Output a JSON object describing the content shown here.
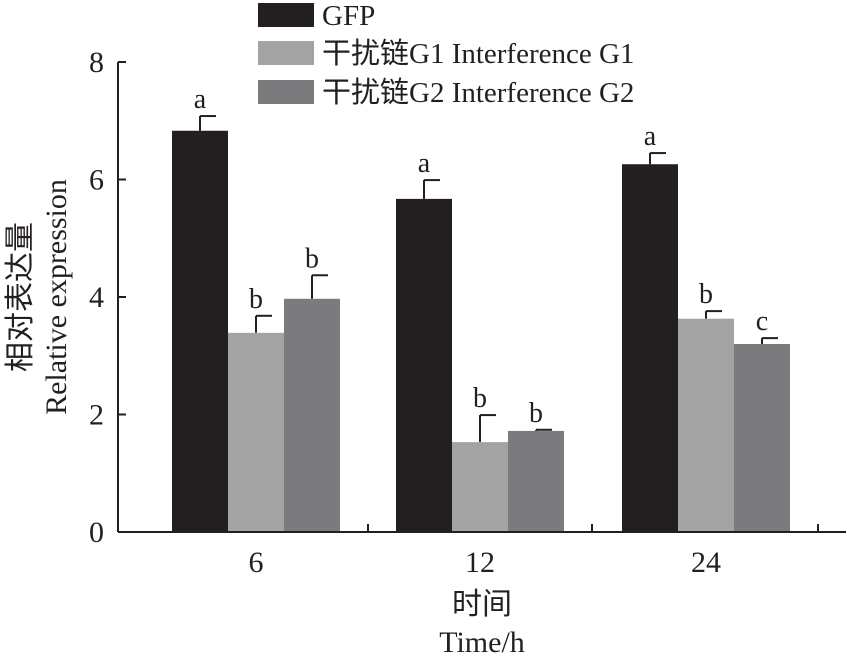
{
  "chart_data": {
    "type": "bar",
    "title": "",
    "xlabel_cn": "时间",
    "xlabel": "Time/h",
    "ylabel_cn": "相对表达量",
    "ylabel": "Relative expression",
    "ylim": [
      0,
      8
    ],
    "yticks": [
      0,
      2,
      4,
      6,
      8
    ],
    "categories": [
      "6",
      "12",
      "24"
    ],
    "legend_position": "top",
    "series": [
      {
        "name": "GFP",
        "color": "#231f20",
        "values": [
          6.83,
          5.67,
          6.26
        ],
        "errors": [
          0.25,
          0.32,
          0.19
        ],
        "labels": [
          "a",
          "a",
          "a"
        ]
      },
      {
        "name": "干扰链G1 Interference G1",
        "color": "#a3a3a3",
        "values": [
          3.39,
          1.53,
          3.63
        ],
        "errors": [
          0.29,
          0.46,
          0.13
        ],
        "labels": [
          "b",
          "b",
          "b"
        ]
      },
      {
        "name": "干扰链G2 Interference G2",
        "color": "#7b7b7d",
        "values": [
          3.97,
          1.72,
          3.2
        ],
        "errors": [
          0.4,
          0.02,
          0.1
        ],
        "labels": [
          "b",
          "b",
          "c"
        ]
      }
    ]
  }
}
